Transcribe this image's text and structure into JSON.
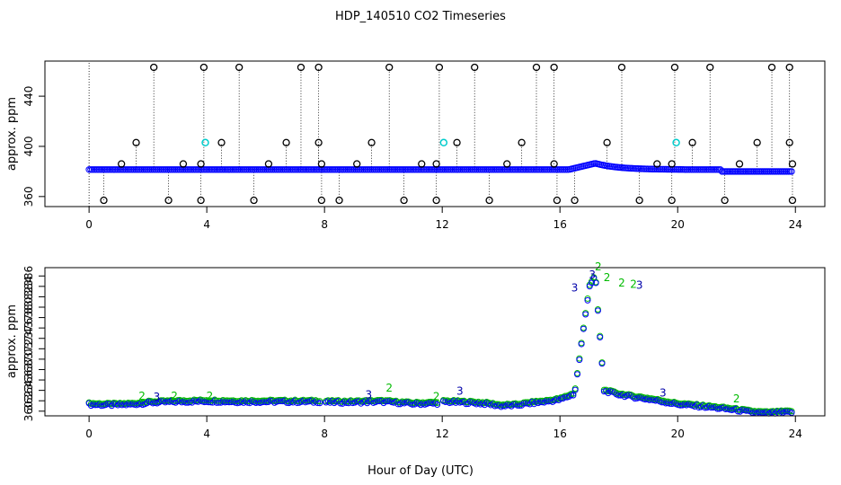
{
  "figure": {
    "title": "HDP_140510  CO2 Timeseries",
    "xlabel": "Hour of Day (UTC)"
  },
  "chart_data": [
    {
      "type": "scatter",
      "panel": "top",
      "title": "",
      "xlabel": "",
      "ylabel": "approx. ppm",
      "xlim": [
        -1.5,
        25
      ],
      "ylim": [
        352,
        468
      ],
      "xticks": [
        0,
        4,
        8,
        12,
        16,
        20,
        24
      ],
      "yticks": [
        360,
        400,
        440
      ],
      "grid": false,
      "legend": "none",
      "series": [
        {
          "marker": "blue-circle",
          "color": "#0000ff",
          "baseline": 381.5,
          "x_range": [
            0,
            23.9
          ],
          "bump": {
            "start": 16.3,
            "peak_x": 17.2,
            "peak_y": 386.5,
            "end": 20.2
          },
          "note": "dense continuous 1-min record"
        },
        {
          "marker": "black-circle-outlier",
          "color": "#000000",
          "points": [
            {
              "x": 0.5,
              "y": 357
            },
            {
              "x": 1.1,
              "y": 386
            },
            {
              "x": 1.6,
              "y": 403
            },
            {
              "x": 2.2,
              "y": 463
            },
            {
              "x": 2.7,
              "y": 357
            },
            {
              "x": 3.2,
              "y": 386
            },
            {
              "x": 3.8,
              "y": 357
            },
            {
              "x": 3.8,
              "y": 386
            },
            {
              "x": 3.9,
              "y": 463
            },
            {
              "x": 4.5,
              "y": 403
            },
            {
              "x": 5.1,
              "y": 463
            },
            {
              "x": 5.6,
              "y": 357
            },
            {
              "x": 6.1,
              "y": 386
            },
            {
              "x": 6.7,
              "y": 403
            },
            {
              "x": 7.2,
              "y": 463
            },
            {
              "x": 7.8,
              "y": 463
            },
            {
              "x": 7.8,
              "y": 403
            },
            {
              "x": 7.9,
              "y": 386
            },
            {
              "x": 7.9,
              "y": 357
            },
            {
              "x": 8.5,
              "y": 357
            },
            {
              "x": 9.1,
              "y": 386
            },
            {
              "x": 9.6,
              "y": 403
            },
            {
              "x": 10.2,
              "y": 463
            },
            {
              "x": 10.7,
              "y": 357
            },
            {
              "x": 11.3,
              "y": 386
            },
            {
              "x": 11.8,
              "y": 357
            },
            {
              "x": 11.8,
              "y": 386
            },
            {
              "x": 11.9,
              "y": 463
            },
            {
              "x": 12.5,
              "y": 403
            },
            {
              "x": 13.1,
              "y": 463
            },
            {
              "x": 13.6,
              "y": 357
            },
            {
              "x": 14.2,
              "y": 386
            },
            {
              "x": 14.7,
              "y": 403
            },
            {
              "x": 15.2,
              "y": 463
            },
            {
              "x": 15.8,
              "y": 463
            },
            {
              "x": 15.8,
              "y": 386
            },
            {
              "x": 15.9,
              "y": 357
            },
            {
              "x": 16.5,
              "y": 357
            },
            {
              "x": 17.6,
              "y": 403
            },
            {
              "x": 18.1,
              "y": 463
            },
            {
              "x": 18.7,
              "y": 357
            },
            {
              "x": 19.3,
              "y": 386
            },
            {
              "x": 19.8,
              "y": 357
            },
            {
              "x": 19.8,
              "y": 386
            },
            {
              "x": 19.9,
              "y": 463
            },
            {
              "x": 20.5,
              "y": 403
            },
            {
              "x": 21.1,
              "y": 463
            },
            {
              "x": 21.6,
              "y": 357
            },
            {
              "x": 22.1,
              "y": 386
            },
            {
              "x": 22.7,
              "y": 403
            },
            {
              "x": 23.2,
              "y": 463
            },
            {
              "x": 23.8,
              "y": 463
            },
            {
              "x": 23.8,
              "y": 403
            },
            {
              "x": 23.9,
              "y": 386
            },
            {
              "x": 23.9,
              "y": 357
            }
          ]
        },
        {
          "marker": "cyan-circle",
          "color": "#00cccc",
          "points": [
            {
              "x": 3.95,
              "y": 403
            },
            {
              "x": 12.05,
              "y": 403
            },
            {
              "x": 19.95,
              "y": 403
            }
          ]
        }
      ]
    },
    {
      "type": "scatter",
      "panel": "bottom",
      "title": "",
      "xlabel": "Hour of Day (UTC)",
      "ylabel": "approx. ppm",
      "xlim": [
        -1.5,
        25
      ],
      "ylim": [
        359.1,
        387.6
      ],
      "xticks": [
        0,
        4,
        8,
        12,
        16,
        20,
        24
      ],
      "yticks": [
        360,
        362,
        364,
        366,
        368,
        370,
        372,
        374,
        376,
        378,
        380,
        382,
        384,
        386
      ],
      "ytick_labels": [
        "360",
        "362",
        "364",
        "366",
        "368",
        "370",
        "372",
        "374",
        "376",
        "378",
        "380",
        "382",
        "384",
        "386"
      ],
      "grid": false,
      "legend": "none",
      "series": [
        {
          "marker": "blue-circle",
          "color": "#0000ff",
          "profile_x": [
            0,
            0.5,
            1,
            1.5,
            2,
            3,
            4,
            5,
            6,
            7,
            7.9,
            8,
            9,
            10,
            10.5,
            11,
            11.9,
            12,
            13,
            13.5,
            14,
            14.5,
            15,
            15.5,
            16,
            16.5,
            17,
            17.2,
            17.5,
            18,
            18.5,
            19,
            19.5,
            20,
            21,
            22,
            22.5,
            23,
            23.9
          ],
          "profile_y": [
            361.3,
            361.2,
            361.2,
            361.3,
            361.6,
            361.8,
            361.9,
            361.8,
            361.8,
            361.8,
            361.8,
            361.7,
            361.7,
            361.8,
            361.6,
            361.4,
            361.5,
            361.8,
            361.6,
            361.4,
            361.0,
            361.1,
            361.5,
            361.8,
            362.2,
            363.3,
            384.0,
            385.9,
            363.9,
            363.2,
            362.7,
            362.3,
            361.8,
            361.3,
            360.8,
            360.2,
            359.8,
            359.6,
            359.8
          ],
          "gaps": [
            [
              7.85,
              8.0
            ],
            [
              11.9,
              12.0
            ]
          ]
        },
        {
          "marker": "green-circle",
          "color": "#00bb00",
          "offset": 0.25
        },
        {
          "marker": "label",
          "color": "#00bb00",
          "labels": [
            {
              "x": 1.8,
              "y": 362.2,
              "text": "2"
            },
            {
              "x": 2.9,
              "y": 362.2,
              "text": "2"
            },
            {
              "x": 4.1,
              "y": 362.2,
              "text": "2"
            },
            {
              "x": 10.2,
              "y": 363.8,
              "text": "2"
            },
            {
              "x": 11.8,
              "y": 362.1,
              "text": "2"
            },
            {
              "x": 17.3,
              "y": 387.1,
              "text": "2"
            },
            {
              "x": 17.6,
              "y": 385.0,
              "text": "2"
            },
            {
              "x": 18.1,
              "y": 384.0,
              "text": "2"
            },
            {
              "x": 18.5,
              "y": 383.7,
              "text": "2"
            },
            {
              "x": 22.0,
              "y": 361.7,
              "text": "2"
            }
          ]
        },
        {
          "marker": "label",
          "color": "#0000aa",
          "labels": [
            {
              "x": 2.3,
              "y": 362.0,
              "text": "3"
            },
            {
              "x": 9.5,
              "y": 362.5,
              "text": "3"
            },
            {
              "x": 12.6,
              "y": 363.2,
              "text": "3"
            },
            {
              "x": 16.5,
              "y": 383.0,
              "text": "3"
            },
            {
              "x": 17.1,
              "y": 385.5,
              "text": "3"
            },
            {
              "x": 18.7,
              "y": 383.5,
              "text": "3"
            },
            {
              "x": 19.5,
              "y": 362.8,
              "text": "3"
            }
          ]
        }
      ]
    }
  ]
}
